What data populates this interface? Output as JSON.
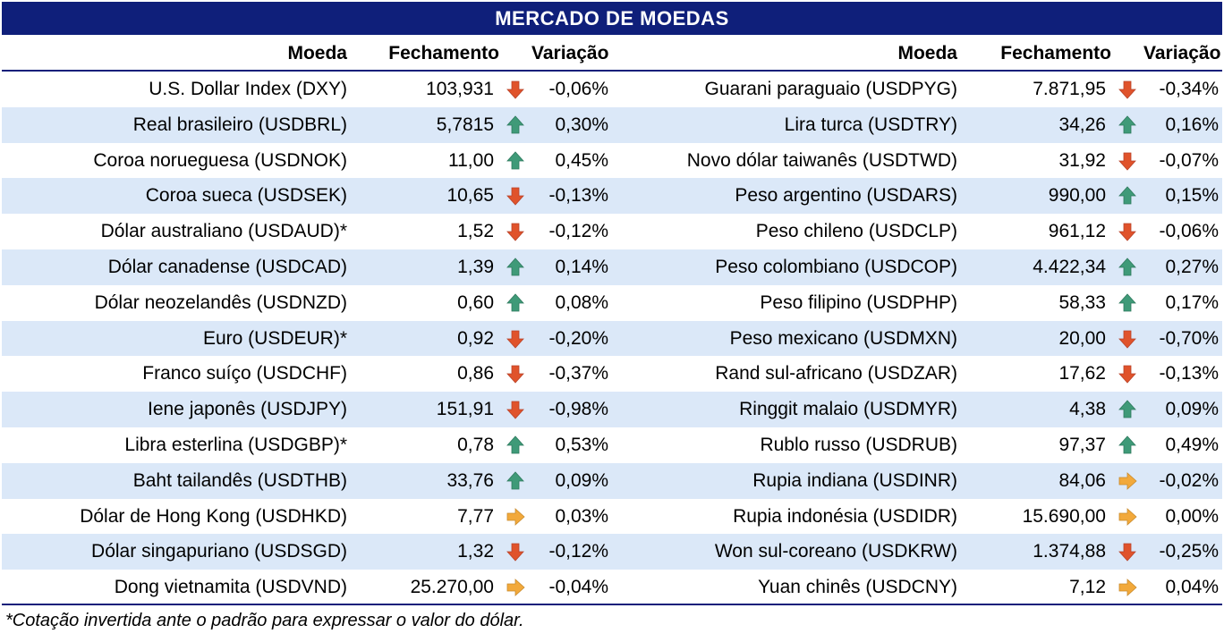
{
  "title": "MERCADO DE MOEDAS",
  "headers": {
    "left": {
      "currency": "Moeda",
      "close": "Fechamento",
      "change": "Variação"
    },
    "right": {
      "currency": "Moeda",
      "close": "Fechamento",
      "change": "Variação"
    }
  },
  "colors": {
    "header_bg": "#0f1f7a",
    "row_alt": "#dbe8f8",
    "down": "#e0532b",
    "up": "#3f9a78",
    "flat": "#f2a93b"
  },
  "left_rows": [
    {
      "name": "U.S. Dollar Index (DXY)",
      "close": "103,931",
      "icon": "arrow-down-icon",
      "change": "-0,06%"
    },
    {
      "name": "Real brasileiro (USDBRL)",
      "close": "5,7815",
      "icon": "arrow-up-icon",
      "change": "0,30%"
    },
    {
      "name": "Coroa norueguesa (USDNOK)",
      "close": "11,00",
      "icon": "arrow-up-icon",
      "change": "0,45%"
    },
    {
      "name": "Coroa sueca (USDSEK)",
      "close": "10,65",
      "icon": "arrow-down-icon",
      "change": "-0,13%"
    },
    {
      "name": "Dólar australiano (USDAUD)*",
      "close": "1,52",
      "icon": "arrow-down-icon",
      "change": "-0,12%"
    },
    {
      "name": "Dólar canadense (USDCAD)",
      "close": "1,39",
      "icon": "arrow-up-icon",
      "change": "0,14%"
    },
    {
      "name": "Dólar neozelandês (USDNZD)",
      "close": "0,60",
      "icon": "arrow-up-icon",
      "change": "0,08%"
    },
    {
      "name": "Euro (USDEUR)*",
      "close": "0,92",
      "icon": "arrow-down-icon",
      "change": "-0,20%"
    },
    {
      "name": "Franco suíço (USDCHF)",
      "close": "0,86",
      "icon": "arrow-down-icon",
      "change": "-0,37%"
    },
    {
      "name": "Iene japonês (USDJPY)",
      "close": "151,91",
      "icon": "arrow-down-icon",
      "change": "-0,98%"
    },
    {
      "name": "Libra esterlina (USDGBP)*",
      "close": "0,78",
      "icon": "arrow-up-icon",
      "change": "0,53%"
    },
    {
      "name": "Baht tailandês (USDTHB)",
      "close": "33,76",
      "icon": "arrow-up-icon",
      "change": "0,09%"
    },
    {
      "name": "Dólar de Hong Kong (USDHKD)",
      "close": "7,77",
      "icon": "arrow-right-icon",
      "change": "0,03%"
    },
    {
      "name": "Dólar singapuriano (USDSGD)",
      "close": "1,32",
      "icon": "arrow-down-icon",
      "change": "-0,12%"
    },
    {
      "name": "Dong vietnamita (USDVND)",
      "close": "25.270,00",
      "icon": "arrow-right-icon",
      "change": "-0,04%"
    }
  ],
  "right_rows": [
    {
      "name": "Guarani paraguaio (USDPYG)",
      "close": "7.871,95",
      "icon": "arrow-down-icon",
      "change": "-0,34%"
    },
    {
      "name": "Lira turca (USDTRY)",
      "close": "34,26",
      "icon": "arrow-up-icon",
      "change": "0,16%"
    },
    {
      "name": "Novo dólar taiwanês (USDTWD)",
      "close": "31,92",
      "icon": "arrow-down-icon",
      "change": "-0,07%"
    },
    {
      "name": "Peso argentino (USDARS)",
      "close": "990,00",
      "icon": "arrow-up-icon",
      "change": "0,15%"
    },
    {
      "name": "Peso chileno (USDCLP)",
      "close": "961,12",
      "icon": "arrow-down-icon",
      "change": "-0,06%"
    },
    {
      "name": "Peso colombiano (USDCOP)",
      "close": "4.422,34",
      "icon": "arrow-up-icon",
      "change": "0,27%"
    },
    {
      "name": "Peso filipino (USDPHP)",
      "close": "58,33",
      "icon": "arrow-up-icon",
      "change": "0,17%"
    },
    {
      "name": "Peso mexicano (USDMXN)",
      "close": "20,00",
      "icon": "arrow-down-icon",
      "change": "-0,70%"
    },
    {
      "name": "Rand sul-africano (USDZAR)",
      "close": "17,62",
      "icon": "arrow-down-icon",
      "change": "-0,13%"
    },
    {
      "name": "Ringgit malaio (USDMYR)",
      "close": "4,38",
      "icon": "arrow-up-icon",
      "change": "0,09%"
    },
    {
      "name": "Rublo russo (USDRUB)",
      "close": "97,37",
      "icon": "arrow-up-icon",
      "change": "0,49%"
    },
    {
      "name": "Rupia indiana (USDINR)",
      "close": "84,06",
      "icon": "arrow-right-icon",
      "change": "-0,02%"
    },
    {
      "name": "Rupia indonésia (USDIDR)",
      "close": "15.690,00",
      "icon": "arrow-right-icon",
      "change": "0,00%"
    },
    {
      "name": "Won sul-coreano (USDKRW)",
      "close": "1.374,88",
      "icon": "arrow-down-icon",
      "change": "-0,25%"
    },
    {
      "name": "Yuan chinês (USDCNY)",
      "close": "7,12",
      "icon": "arrow-right-icon",
      "change": "0,04%"
    }
  ],
  "footnote": "*Cotação invertida ante o padrão para expressar o valor do dólar."
}
